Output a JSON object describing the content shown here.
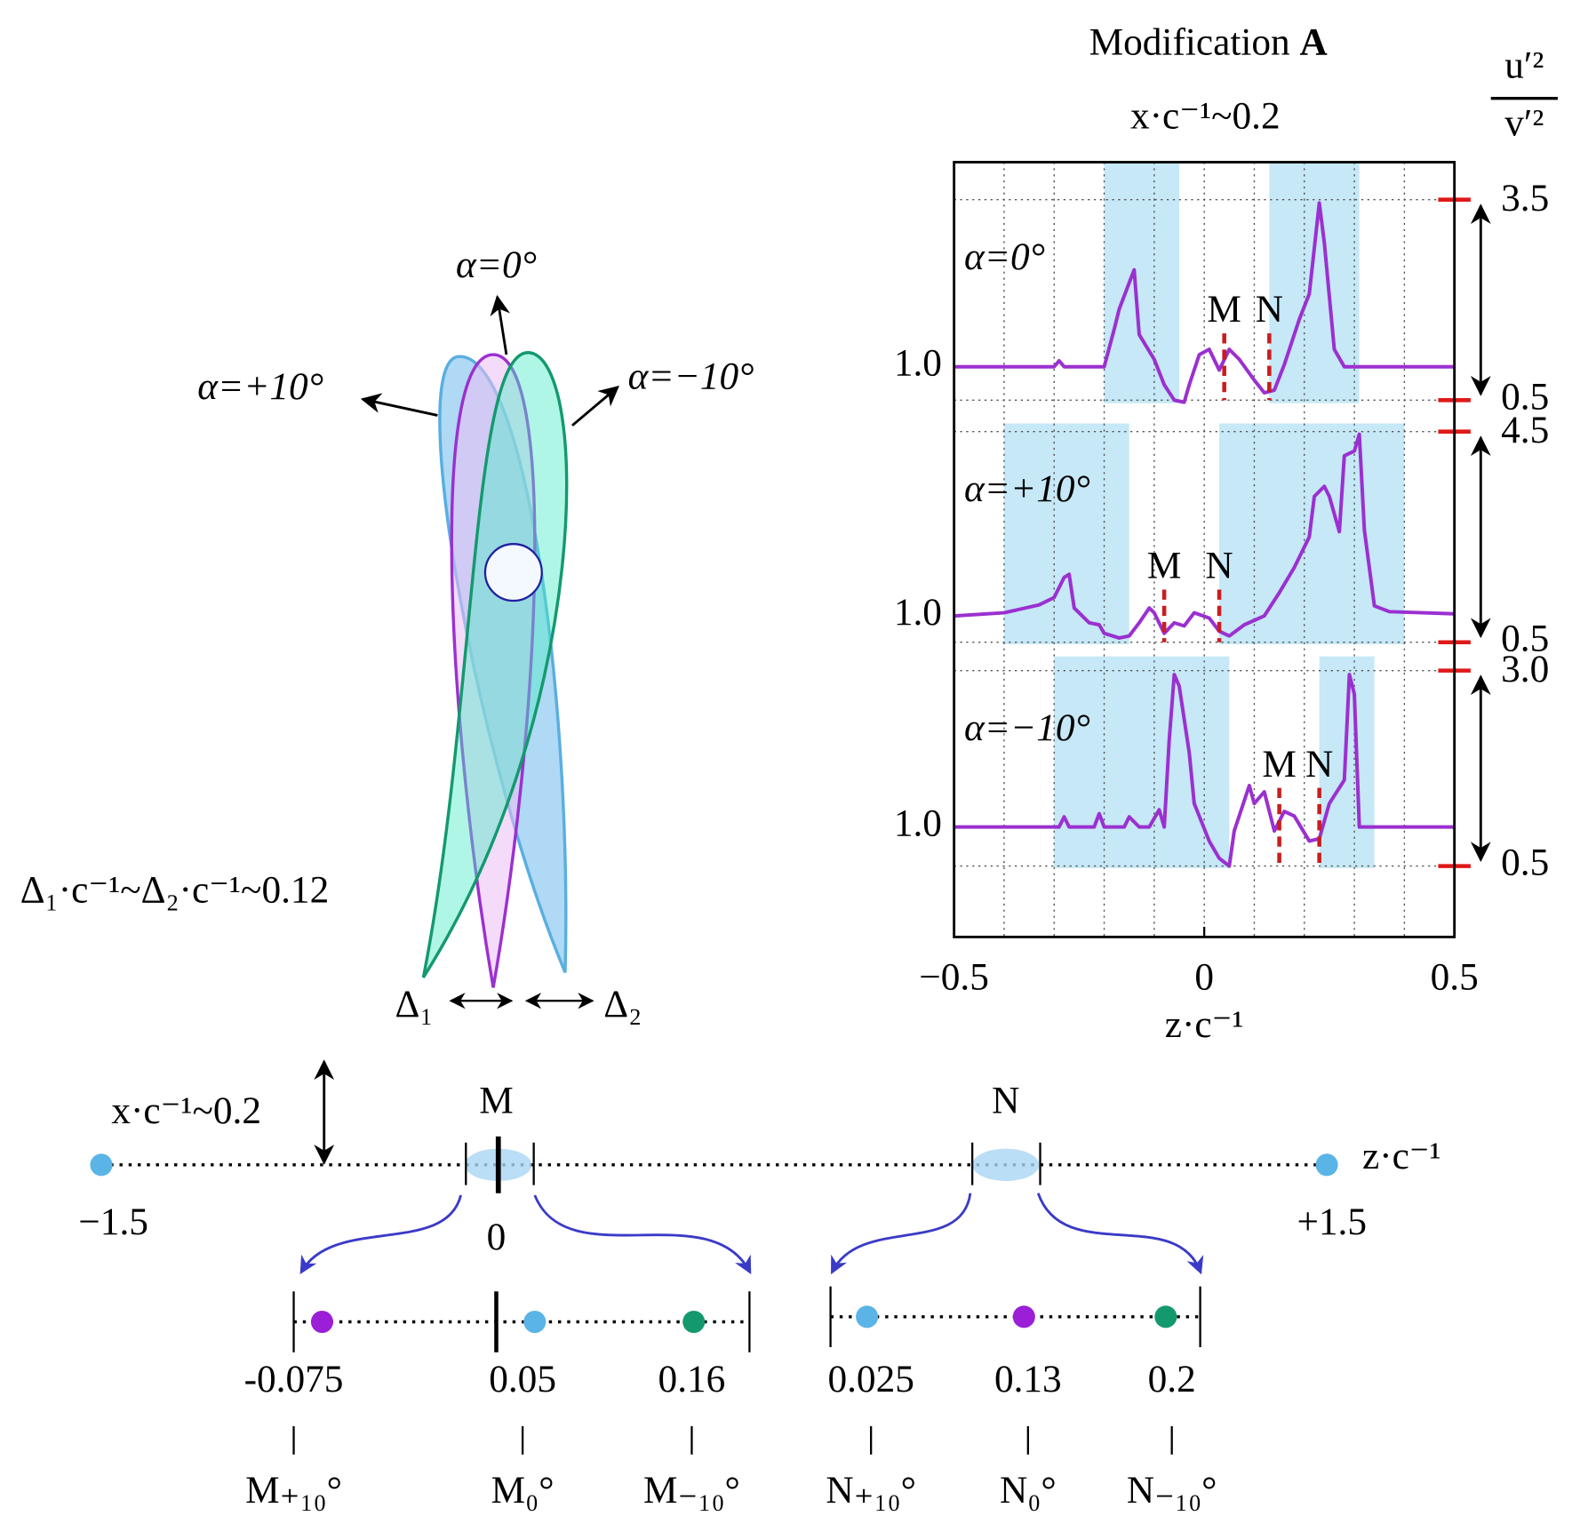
{
  "chart_data": {
    "type": "line",
    "title": "Modification",
    "title_bold": "A",
    "subtitle": "x·c⁻¹~0.2",
    "xlabel": "z·c⁻¹",
    "ylabel": {
      "numerator": "u′²",
      "denominator": "v′²"
    },
    "xlim": [
      -0.5,
      0.5
    ],
    "xticks": [
      {
        "value": -0.5,
        "label": "−0.5"
      },
      0,
      0.5
    ],
    "minor_xticks": [
      -0.4,
      -0.3,
      -0.2,
      -0.1,
      0.1,
      0.2,
      0.3,
      0.4
    ],
    "grid": true,
    "line_color": "#9b30d0",
    "shade_color": "#c6e8f7",
    "marker_color": "#c81e1e",
    "panels": [
      {
        "label": "α=0°",
        "ylim": [
          0.5,
          3.5
        ],
        "yticks": [
          {
            "value": 1,
            "label": "1.0"
          }
        ],
        "scale_ticks": [
          0.5,
          3.5
        ],
        "shaded": [
          [
            -0.2,
            -0.05
          ],
          [
            0.13,
            0.31
          ]
        ],
        "markers": [
          {
            "label": "M",
            "x": 0.04
          },
          {
            "label": "N",
            "x": 0.13
          }
        ],
        "x": [
          -0.5,
          -0.3,
          -0.29,
          -0.28,
          -0.2,
          -0.18,
          -0.17,
          -0.14,
          -0.13,
          -0.1,
          -0.08,
          -0.06,
          -0.04,
          -0.03,
          -0.01,
          0.01,
          0.03,
          0.05,
          0.07,
          0.1,
          0.12,
          0.14,
          0.16,
          0.19,
          0.21,
          0.23,
          0.24,
          0.26,
          0.28,
          0.5
        ],
        "values": [
          1,
          1,
          1.09,
          1,
          1,
          1.56,
          1.86,
          2.45,
          1.48,
          1.11,
          0.73,
          0.5,
          0.47,
          0.73,
          1.18,
          1.26,
          0.95,
          1.26,
          1.11,
          0.8,
          0.61,
          0.65,
          1.03,
          1.71,
          2.09,
          3.45,
          2.85,
          1.26,
          1,
          1
        ]
      },
      {
        "label": "α=+10°",
        "ylim": [
          0.5,
          4.5
        ],
        "yticks": [
          {
            "value": 1,
            "label": "1.0"
          }
        ],
        "scale_ticks": [
          0.5,
          4.5
        ],
        "shaded": [
          [
            -0.4,
            -0.15
          ],
          [
            0.03,
            0.4
          ]
        ],
        "markers": [
          {
            "label": "M",
            "x": -0.08
          },
          {
            "label": "N",
            "x": 0.03
          }
        ],
        "x": [
          -0.5,
          -0.4,
          -0.33,
          -0.3,
          -0.28,
          -0.27,
          -0.26,
          -0.23,
          -0.21,
          -0.2,
          -0.17,
          -0.15,
          -0.13,
          -0.11,
          -0.1,
          -0.08,
          -0.06,
          -0.04,
          -0.02,
          0.01,
          0.03,
          0.05,
          0.08,
          0.12,
          0.15,
          0.18,
          0.21,
          0.22,
          0.24,
          0.25,
          0.27,
          0.28,
          0.3,
          0.31,
          0.32,
          0.34,
          0.37,
          0.5
        ],
        "values": [
          1,
          1.06,
          1.21,
          1.35,
          1.73,
          1.79,
          1.15,
          0.87,
          0.83,
          0.67,
          0.58,
          0.62,
          0.87,
          1.15,
          1.06,
          0.67,
          0.87,
          0.81,
          1.06,
          0.96,
          0.71,
          0.62,
          0.83,
          1,
          1.44,
          1.92,
          2.5,
          3.27,
          3.46,
          3.27,
          2.6,
          4.04,
          4.13,
          4.45,
          2.63,
          1.19,
          1.08,
          1.04
        ]
      },
      {
        "label": "α=−10°",
        "ylim": [
          0.5,
          3
        ],
        "yticks": [
          {
            "value": 1,
            "label": "1.0"
          }
        ],
        "scale_ticks": [
          0.5,
          {
            "value": 3,
            "label": "3.0"
          }
        ],
        "shaded": [
          [
            -0.3,
            0.05
          ],
          [
            0.23,
            0.34
          ]
        ],
        "markers": [
          {
            "label": "M",
            "x": 0.15
          },
          {
            "label": "N",
            "x": 0.23
          }
        ],
        "x": [
          -0.5,
          -0.29,
          -0.28,
          -0.27,
          -0.22,
          -0.21,
          -0.2,
          -0.16,
          -0.15,
          -0.13,
          -0.11,
          -0.09,
          -0.08,
          -0.07,
          -0.06,
          -0.05,
          -0.03,
          -0.02,
          0.01,
          0.03,
          0.05,
          0.06,
          0.09,
          0.1,
          0.12,
          0.14,
          0.16,
          0.18,
          0.21,
          0.23,
          0.25,
          0.28,
          0.29,
          0.3,
          0.31,
          0.5
        ],
        "values": [
          1,
          1,
          1.13,
          1,
          1,
          1.17,
          1,
          1,
          1.13,
          1,
          1,
          1.22,
          1,
          2.11,
          2.95,
          2.8,
          1.95,
          1.3,
          0.82,
          0.6,
          0.5,
          0.95,
          1.53,
          1.3,
          1.45,
          0.95,
          1.2,
          1.14,
          0.82,
          0.85,
          1.3,
          1.6,
          2.95,
          2.7,
          1,
          1
        ]
      }
    ]
  },
  "diagram": {
    "alpha_0": "α=0°",
    "alpha_plus": "α=+10°",
    "alpha_minus": "α=−10°",
    "delta_note": "Δ₁·c⁻¹~Δ₂·c⁻¹~0.12",
    "delta_1": "Δ₁",
    "delta_2": "Δ₂"
  },
  "number_line": {
    "offset_label": "x·c⁻¹~0.2",
    "axis_label": "z·c⁻¹",
    "start": "−1.5",
    "end": "+1.5",
    "zero": "0",
    "M": "M",
    "N": "N",
    "M_points": [
      {
        "value": -0.075,
        "label": "M₊₁₀°",
        "color": "#9b1fd6"
      },
      {
        "value": 0.05,
        "label": "M₀°",
        "color": "#5ab4e6"
      },
      {
        "value": 0.16,
        "label": "M₋₁₀°",
        "color": "#14996e"
      }
    ],
    "N_points": [
      {
        "value": 0.025,
        "label": "N₊₁₀°",
        "color": "#5ab4e6"
      },
      {
        "value": 0.13,
        "label": "N₀°",
        "color": "#9b1fd6"
      },
      {
        "value": 0.2,
        "label": "N₋₁₀°",
        "color": "#14996e"
      }
    ]
  }
}
